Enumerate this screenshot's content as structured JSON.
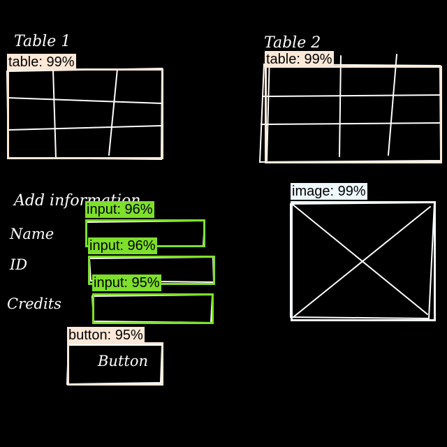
{
  "sketch_labels": {
    "table1_heading": "Table 1",
    "table2_heading": "Table 2",
    "add_info_heading": "Add information",
    "name_label": "Name",
    "id_label": "ID",
    "credits_label": "Credits",
    "button_text": "Button"
  },
  "detections": [
    {
      "id": "table1",
      "label": "table: 99%"
    },
    {
      "id": "table2",
      "label": "table: 99%"
    },
    {
      "id": "image",
      "label": "image: 99%"
    },
    {
      "id": "input_name",
      "label": "input: 96%"
    },
    {
      "id": "input_id",
      "label": "input: 96%"
    },
    {
      "id": "input_credits",
      "label": "input: 95%"
    },
    {
      "id": "button",
      "label": "button: 95%"
    }
  ],
  "colors": {
    "background": "#000000",
    "sketch": "#ffffff",
    "table_box": "#fde8d8",
    "input_box": "#7ee02a",
    "image_box": "#eef8fd",
    "button_box": "#fde8d8"
  }
}
